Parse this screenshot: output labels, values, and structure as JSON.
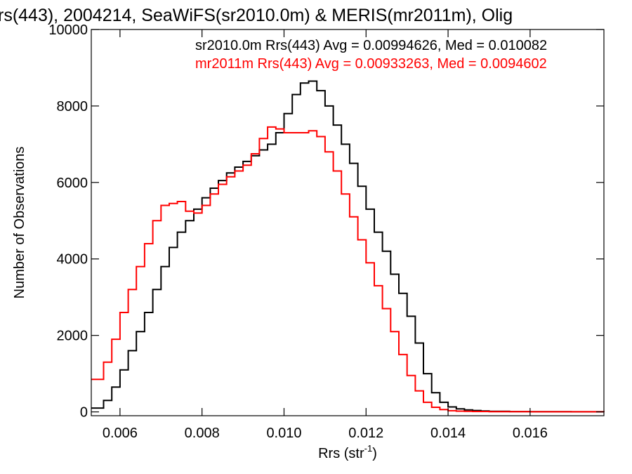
{
  "chart_data": {
    "type": "line",
    "title": "rs(443), 2004214, SeaWiFS(sr2010.0m) & MERIS(mr2011m), Olig",
    "xlabel": "Rrs (str",
    "xlabel_sup": "-1",
    "xlabel_end": ")",
    "ylabel": "Number of Observations",
    "xlim": [
      0.0053,
      0.0178
    ],
    "ylim": [
      -100,
      10000
    ],
    "x_ticks": [
      0.006,
      0.008,
      0.01,
      0.012,
      0.014,
      0.016
    ],
    "x_tick_labels": [
      "0.006",
      "0.008",
      "0.010",
      "0.012",
      "0.014",
      "0.016"
    ],
    "y_ticks": [
      0,
      2000,
      4000,
      6000,
      8000,
      10000
    ],
    "y_tick_labels": [
      "0",
      "2000",
      "4000",
      "6000",
      "8000",
      "10000"
    ],
    "step": true,
    "legend_placement": "top-right",
    "series": [
      {
        "name": "sr2010.0m Rrs(443) Avg = 0.00994626, Med = 0.010082",
        "color": "#000000",
        "x": [
          0.0053,
          0.0056,
          0.0058,
          0.006,
          0.0062,
          0.0064,
          0.0066,
          0.0068,
          0.007,
          0.0072,
          0.0074,
          0.0076,
          0.0078,
          0.008,
          0.0082,
          0.0084,
          0.0086,
          0.0088,
          0.009,
          0.0092,
          0.0094,
          0.0096,
          0.0098,
          0.01,
          0.0102,
          0.0104,
          0.0106,
          0.0108,
          0.011,
          0.0112,
          0.0114,
          0.0116,
          0.0118,
          0.012,
          0.0122,
          0.0124,
          0.0126,
          0.0128,
          0.013,
          0.0132,
          0.0134,
          0.0136,
          0.0138,
          0.014,
          0.0142,
          0.0144,
          0.0146,
          0.0148,
          0.015,
          0.0155,
          0.016,
          0.017,
          0.0178
        ],
        "values": [
          100,
          300,
          650,
          1100,
          1600,
          2100,
          2600,
          3200,
          3800,
          4300,
          4700,
          5000,
          5300,
          5600,
          5850,
          6050,
          6250,
          6400,
          6550,
          6700,
          6850,
          7000,
          7300,
          7800,
          8300,
          8600,
          8650,
          8400,
          8000,
          7500,
          7000,
          6500,
          5900,
          5300,
          4700,
          4200,
          3600,
          3100,
          2500,
          1800,
          1000,
          500,
          250,
          130,
          80,
          50,
          35,
          25,
          15,
          8,
          5,
          2,
          0
        ]
      },
      {
        "name": "mr2011m Rrs(443) Avg = 0.00933263, Med = 0.0094602",
        "color": "#ff0000",
        "x": [
          0.0053,
          0.0056,
          0.0058,
          0.006,
          0.0062,
          0.0064,
          0.0066,
          0.0068,
          0.007,
          0.0072,
          0.0074,
          0.0076,
          0.0078,
          0.008,
          0.0082,
          0.0084,
          0.0086,
          0.0088,
          0.009,
          0.0092,
          0.0094,
          0.0096,
          0.0098,
          0.01,
          0.0102,
          0.0104,
          0.0106,
          0.0108,
          0.011,
          0.0112,
          0.0114,
          0.0116,
          0.0118,
          0.012,
          0.0122,
          0.0124,
          0.0126,
          0.0128,
          0.013,
          0.0132,
          0.0134,
          0.0136,
          0.0138,
          0.014,
          0.0142,
          0.0144,
          0.0146,
          0.015,
          0.016,
          0.0178
        ],
        "values": [
          850,
          1300,
          1900,
          2600,
          3200,
          3800,
          4400,
          5000,
          5400,
          5450,
          5500,
          5250,
          5200,
          5400,
          5700,
          5950,
          6150,
          6300,
          6450,
          6750,
          7150,
          7450,
          7400,
          7300,
          7300,
          7300,
          7350,
          7200,
          6800,
          6300,
          5700,
          5100,
          4500,
          3900,
          3300,
          2700,
          2100,
          1500,
          950,
          550,
          250,
          120,
          60,
          30,
          20,
          15,
          10,
          5,
          2,
          0
        ]
      }
    ]
  }
}
